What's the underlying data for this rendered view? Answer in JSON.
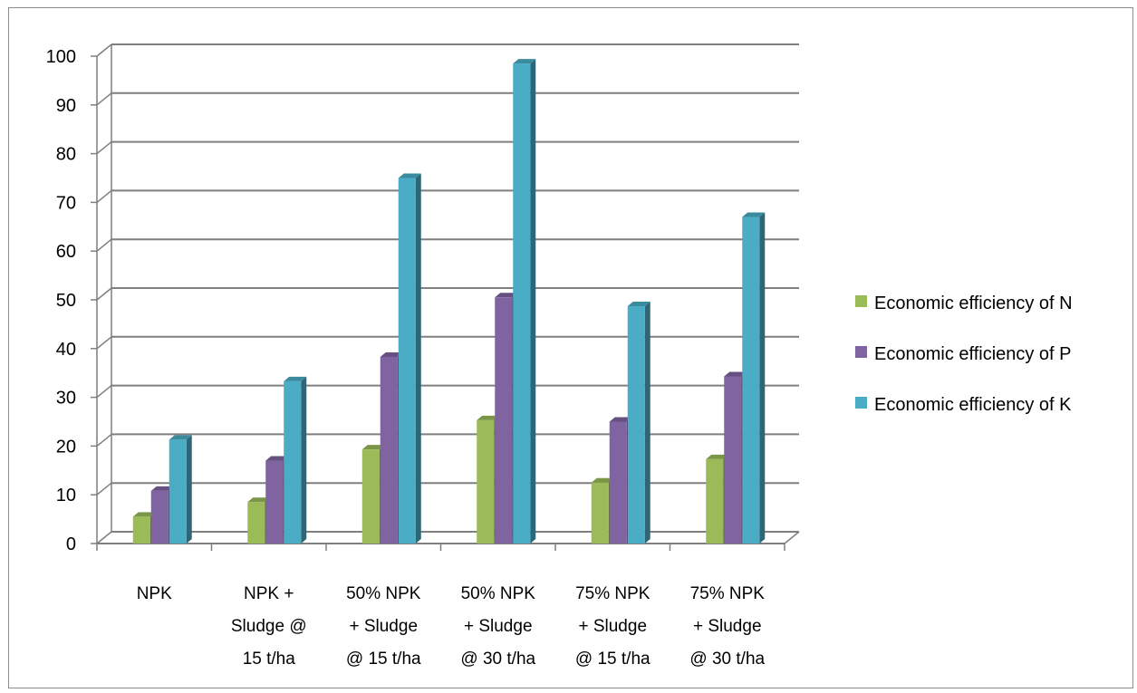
{
  "chart_data": {
    "type": "bar",
    "style": "3d-clustered-column",
    "title": "",
    "xlabel": "",
    "ylabel": "",
    "ylim": [
      0,
      100
    ],
    "yticks": [
      0,
      10,
      20,
      30,
      40,
      50,
      60,
      70,
      80,
      90,
      100
    ],
    "grid": true,
    "legend_position": "right",
    "categories": [
      [
        "NPK"
      ],
      [
        "NPK +",
        "Sludge @",
        "15 t/ha"
      ],
      [
        "50% NPK",
        "+ Sludge",
        "@ 15 t/ha"
      ],
      [
        "50% NPK",
        "+ Sludge",
        "@ 30 t/ha"
      ],
      [
        "75% NPK",
        "+ Sludge",
        "@ 15 t/ha"
      ],
      [
        "75% NPK",
        "+ Sludge",
        "@ 30 t/ha"
      ]
    ],
    "series": [
      {
        "name": "Economic efficiency of N",
        "color": "#9BBB59",
        "values": [
          5.5,
          8.5,
          19.3,
          25.3,
          12.5,
          17.3
        ]
      },
      {
        "name": "Economic efficiency of P",
        "color": "#8064A2",
        "values": [
          10.8,
          17.0,
          38.3,
          50.5,
          25.0,
          34.3
        ]
      },
      {
        "name": "Economic efficiency of K",
        "color": "#4BACC6",
        "values": [
          21.3,
          33.3,
          75.0,
          98.5,
          48.7,
          67.0
        ]
      }
    ]
  }
}
